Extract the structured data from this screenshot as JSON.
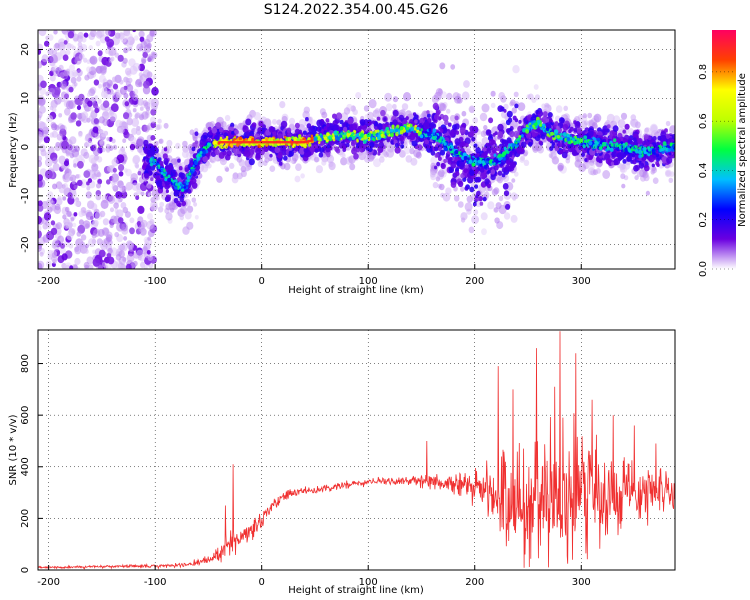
{
  "title": "S124.2022.354.00.45.G26",
  "chart_data": [
    {
      "type": "heatmap",
      "xlabel": "Height of straight line (km)",
      "ylabel": "Frequency (Hz)",
      "xlim": [
        -210,
        388
      ],
      "ylim": [
        -25,
        24
      ],
      "xticks": [
        -200,
        -100,
        0,
        100,
        200,
        300
      ],
      "yticks": [
        -20,
        -10,
        0,
        10,
        20
      ],
      "colorbar": {
        "label": "Normalized spectral amplitude",
        "range": [
          0,
          0.97
        ],
        "ticks": [
          "0.0",
          "0.2",
          "0.4",
          "0.6",
          "0.8"
        ],
        "tick_values": [
          0,
          0.2,
          0.4,
          0.6,
          0.8
        ],
        "colors": [
          "#ffffff",
          "#6a00e0",
          "#0000ff",
          "#00c0ff",
          "#00ff40",
          "#c0ff00",
          "#ffff00",
          "#ff4000",
          "#ff0060"
        ]
      },
      "ridge": {
        "x": [
          -100,
          -90,
          -80,
          -75,
          -70,
          -60,
          -50,
          -40,
          -20,
          0,
          20,
          40,
          50,
          60,
          80,
          100,
          120,
          140,
          150,
          165,
          180,
          200,
          220,
          240,
          250,
          260,
          270,
          280,
          300,
          320,
          340,
          360,
          388
        ],
        "y": [
          -3,
          -6,
          -8,
          -8.5,
          -7,
          -2,
          0.5,
          1,
          1,
          1,
          1,
          1,
          1.5,
          2,
          2.5,
          2,
          3,
          4,
          3,
          2,
          -1,
          -3,
          -3,
          1,
          4,
          5,
          3,
          2,
          1,
          0.5,
          0,
          -1,
          0
        ]
      }
    },
    {
      "type": "line",
      "xlabel": "Height of straight line (km)",
      "ylabel": "SNR (10 * v/v)",
      "xlim": [
        -210,
        388
      ],
      "ylim": [
        0,
        930
      ],
      "xticks": [
        -200,
        -100,
        0,
        100,
        200,
        300
      ],
      "yticks": [
        0,
        200,
        400,
        600,
        800
      ],
      "color": "#f03030",
      "trend": {
        "x": [
          -210,
          -100,
          -70,
          -50,
          -40,
          -30,
          -20,
          -10,
          0,
          10,
          20,
          30,
          50,
          100,
          150,
          180,
          200,
          210,
          220,
          240,
          260,
          280,
          300,
          320,
          340,
          360,
          388
        ],
        "mean": [
          10,
          15,
          20,
          40,
          60,
          110,
          130,
          150,
          190,
          250,
          280,
          300,
          310,
          340,
          350,
          330,
          320,
          310,
          290,
          250,
          260,
          280,
          300,
          290,
          300,
          310,
          300
        ],
        "amplitude": [
          5,
          8,
          10,
          20,
          40,
          60,
          60,
          50,
          40,
          30,
          25,
          20,
          15,
          20,
          30,
          60,
          80,
          100,
          180,
          300,
          320,
          330,
          300,
          250,
          200,
          150,
          90
        ]
      },
      "spikes": [
        {
          "x": -27,
          "y": 410
        },
        {
          "x": -34,
          "y": 250
        },
        {
          "x": 155,
          "y": 500
        },
        {
          "x": 222,
          "y": 790
        },
        {
          "x": 236,
          "y": 700
        },
        {
          "x": 258,
          "y": 860
        },
        {
          "x": 275,
          "y": 710
        },
        {
          "x": 280,
          "y": 925
        },
        {
          "x": 295,
          "y": 840
        },
        {
          "x": 310,
          "y": 660
        },
        {
          "x": 330,
          "y": 600
        },
        {
          "x": 350,
          "y": 560
        },
        {
          "x": 370,
          "y": 490
        }
      ]
    }
  ]
}
